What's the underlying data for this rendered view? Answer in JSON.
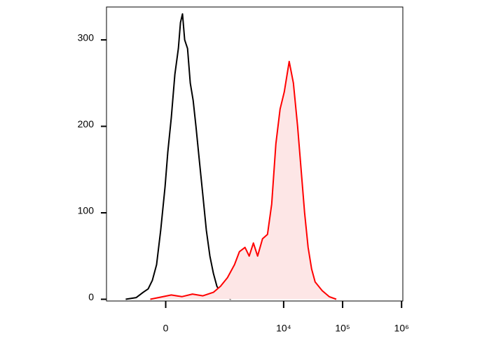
{
  "chart_data": {
    "type": "line",
    "xscale": "biexponential",
    "xlim": [
      -1000,
      1050000
    ],
    "xticks": [
      0,
      {
        "value": 10000,
        "label": "10⁴"
      },
      {
        "value": 100000,
        "label": "10⁵"
      },
      {
        "value": 1000000,
        "label": "10⁶"
      }
    ],
    "ylim": [
      -2,
      338
    ],
    "yticks": [
      0,
      100,
      200,
      300
    ],
    "series": [
      {
        "color": "#000000",
        "fill": false,
        "x": [
          -456,
          -284,
          -199,
          -148,
          -109,
          -73,
          -39,
          -5,
          16,
          44,
          73,
          103,
          122,
          141,
          162,
          192,
          223,
          258,
          295,
          346,
          404,
          468,
          544,
          628,
          725,
          836,
          960,
          1270
        ],
        "values": [
          0,
          2,
          8,
          12,
          22,
          40,
          80,
          130,
          170,
          210,
          260,
          290,
          320,
          330,
          300,
          290,
          250,
          230,
          200,
          160,
          120,
          80,
          50,
          30,
          15,
          8,
          3,
          0
        ]
      },
      {
        "color": "#ff0000",
        "fill": true,
        "fill_color": "#fde6e6",
        "x": [
          -128,
          44,
          135,
          249,
          404,
          628,
          836,
          1106,
          1460,
          1770,
          2206,
          2602,
          3070,
          3618,
          4380,
          5320,
          6260,
          7380,
          8700,
          10260,
          12420,
          14640,
          17260,
          19800,
          22700,
          26000,
          29800,
          34200,
          45000,
          59200,
          78000
        ],
        "values": [
          0,
          5,
          3,
          6,
          4,
          8,
          15,
          25,
          40,
          55,
          60,
          50,
          65,
          50,
          70,
          75,
          110,
          180,
          220,
          240,
          275,
          250,
          200,
          150,
          100,
          60,
          35,
          20,
          10,
          3,
          0
        ]
      }
    ]
  }
}
